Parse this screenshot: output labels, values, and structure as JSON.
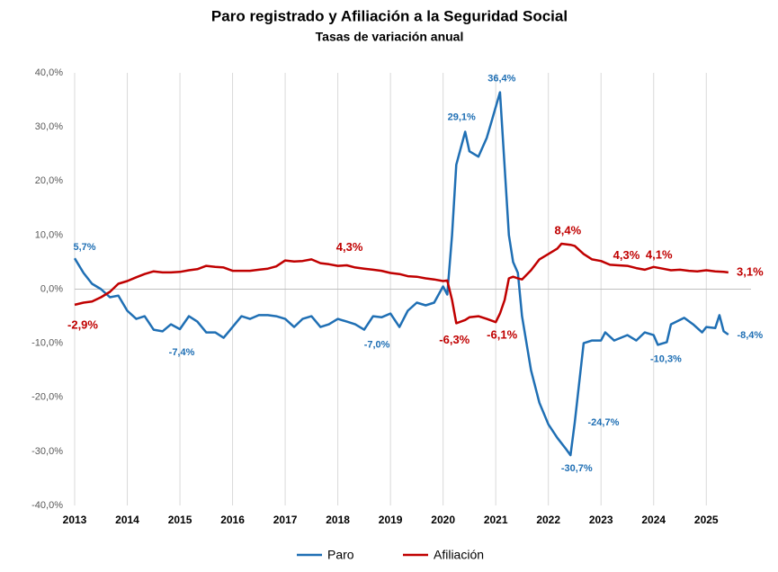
{
  "chart_data": {
    "type": "line",
    "title": "Paro registrado y Afiliación a la Seguridad Social",
    "subtitle": "Tasas de variación anual",
    "xlim": [
      2013,
      2025.85
    ],
    "xticks": [
      2013,
      2014,
      2015,
      2016,
      2017,
      2018,
      2019,
      2020,
      2021,
      2022,
      2023,
      2024,
      2025
    ],
    "ylim": [
      -40,
      40
    ],
    "yticks": [
      {
        "value": -40,
        "label": "-40,0%"
      },
      {
        "value": -30,
        "label": "-30,0%"
      },
      {
        "value": -20,
        "label": "-20,0%"
      },
      {
        "value": -10,
        "label": "-10,0%"
      },
      {
        "value": 0,
        "label": "0,0%"
      },
      {
        "value": 10,
        "label": "10,0%"
      },
      {
        "value": 20,
        "label": "20,0%"
      },
      {
        "value": 30,
        "label": "30,0%"
      },
      {
        "value": 40,
        "label": "40,0%"
      }
    ],
    "grid": true,
    "legend": "bottom",
    "series": [
      {
        "name": "Paro",
        "color": "#1f6fb4",
        "x": [
          2013.0,
          2013.17,
          2013.33,
          2013.5,
          2013.67,
          2013.83,
          2014.0,
          2014.17,
          2014.33,
          2014.5,
          2014.67,
          2014.83,
          2015.0,
          2015.17,
          2015.33,
          2015.5,
          2015.67,
          2015.83,
          2016.0,
          2016.17,
          2016.33,
          2016.5,
          2016.67,
          2016.83,
          2017.0,
          2017.17,
          2017.33,
          2017.5,
          2017.67,
          2017.83,
          2018.0,
          2018.17,
          2018.33,
          2018.5,
          2018.67,
          2018.83,
          2019.0,
          2019.17,
          2019.33,
          2019.5,
          2019.67,
          2019.83,
          2020.0,
          2020.08,
          2020.17,
          2020.25,
          2020.42,
          2020.5,
          2020.67,
          2020.83,
          2020.92,
          2021.08,
          2021.25,
          2021.33,
          2021.42,
          2021.5,
          2021.67,
          2021.83,
          2022.0,
          2022.17,
          2022.33,
          2022.42,
          2022.5,
          2022.67,
          2022.83,
          2023.0,
          2023.08,
          2023.25,
          2023.5,
          2023.67,
          2023.83,
          2024.0,
          2024.08,
          2024.25,
          2024.33,
          2024.58,
          2024.75,
          2024.92,
          2025.0,
          2025.17,
          2025.25,
          2025.33,
          2025.42
        ],
        "values": [
          5.7,
          3.0,
          1.0,
          0,
          -1.5,
          -1.2,
          -4,
          -5.5,
          -5,
          -7.5,
          -7.8,
          -6.5,
          -7.4,
          -5,
          -6,
          -8,
          -8,
          -9,
          -7,
          -5,
          -5.5,
          -4.8,
          -4.8,
          -5,
          -5.5,
          -7,
          -5.5,
          -5,
          -7,
          -6.5,
          -5.5,
          -6,
          -6.5,
          -7.5,
          -5,
          -5.2,
          -4.5,
          -7,
          -4,
          -2.5,
          -3,
          -2.5,
          0.5,
          -1,
          10,
          23,
          29.1,
          25.5,
          24.5,
          28,
          31,
          36.4,
          10,
          5,
          3,
          -5,
          -15,
          -21,
          -25,
          -27.5,
          -29.5,
          -30.7,
          -24.7,
          -10,
          -9.5,
          -9.5,
          -8,
          -9.5,
          -8.5,
          -9.5,
          -8,
          -8.5,
          -10.3,
          -9.8,
          -6.5,
          -5.3,
          -6.5,
          -8,
          -7,
          -7.2,
          -4.8,
          -7.8,
          -8.4
        ],
        "value_labels": [
          "5,7%",
          null,
          null,
          null,
          null,
          null,
          null,
          null,
          null,
          null,
          null,
          null,
          "-7,4%",
          null,
          null,
          null,
          null,
          null,
          null,
          null,
          null,
          null,
          null,
          null,
          null,
          null,
          null,
          null,
          null,
          null,
          null,
          null,
          null,
          null,
          null,
          null,
          null,
          "-7,0%",
          null,
          null,
          null,
          null,
          null,
          null,
          null,
          null,
          "29,1%",
          null,
          null,
          null,
          null,
          "36,4%",
          null,
          null,
          null,
          null,
          null,
          null,
          null,
          null,
          null,
          "-30,7%",
          "-24,7%",
          null,
          null,
          null,
          null,
          null,
          null,
          null,
          null,
          null,
          "-10,3%",
          null,
          null,
          null,
          null,
          null,
          null,
          null,
          null,
          null,
          "-8,4%"
        ]
      },
      {
        "name": "Afiliación",
        "color": "#c00000",
        "x": [
          2013.0,
          2013.17,
          2013.33,
          2013.5,
          2013.67,
          2013.83,
          2014.0,
          2014.17,
          2014.33,
          2014.5,
          2014.67,
          2014.83,
          2015.0,
          2015.17,
          2015.33,
          2015.5,
          2015.67,
          2015.83,
          2016.0,
          2016.17,
          2016.33,
          2016.5,
          2016.67,
          2016.83,
          2017.0,
          2017.17,
          2017.33,
          2017.5,
          2017.67,
          2017.83,
          2018.0,
          2018.17,
          2018.33,
          2018.5,
          2018.67,
          2018.83,
          2019.0,
          2019.17,
          2019.33,
          2019.5,
          2019.67,
          2019.83,
          2020.0,
          2020.08,
          2020.17,
          2020.25,
          2020.42,
          2020.5,
          2020.67,
          2020.83,
          2021.0,
          2021.08,
          2021.17,
          2021.25,
          2021.33,
          2021.42,
          2021.5,
          2021.67,
          2021.83,
          2022.0,
          2022.17,
          2022.25,
          2022.42,
          2022.5,
          2022.67,
          2022.83,
          2023.0,
          2023.17,
          2023.33,
          2023.5,
          2023.67,
          2023.83,
          2024.0,
          2024.17,
          2024.33,
          2024.5,
          2024.67,
          2024.83,
          2025.0,
          2025.17,
          2025.33,
          2025.42
        ],
        "values": [
          -2.9,
          -2.5,
          -2.3,
          -1.5,
          -0.5,
          1.0,
          1.5,
          2.2,
          2.8,
          3.3,
          3.1,
          3.1,
          3.2,
          3.5,
          3.7,
          4.3,
          4.1,
          4.0,
          3.4,
          3.4,
          3.4,
          3.6,
          3.8,
          4.2,
          5.3,
          5.1,
          5.2,
          5.5,
          4.8,
          4.6,
          4.3,
          4.4,
          4.0,
          3.8,
          3.6,
          3.4,
          3.0,
          2.8,
          2.4,
          2.3,
          2.0,
          1.8,
          1.5,
          1.6,
          -2,
          -6.3,
          -5.7,
          -5.2,
          -5,
          -5.5,
          -6.1,
          -4.5,
          -2,
          2.0,
          2.3,
          2.0,
          1.8,
          3.5,
          5.5,
          6.5,
          7.5,
          8.4,
          8.2,
          8.0,
          6.5,
          5.5,
          5.2,
          4.5,
          4.4,
          4.3,
          3.9,
          3.6,
          4.1,
          3.8,
          3.5,
          3.6,
          3.4,
          3.3,
          3.5,
          3.3,
          3.2,
          3.1
        ],
        "value_labels": [
          "-2,9%",
          null,
          null,
          null,
          null,
          null,
          null,
          null,
          null,
          null,
          null,
          null,
          null,
          null,
          null,
          null,
          null,
          null,
          null,
          null,
          null,
          null,
          null,
          null,
          null,
          null,
          null,
          null,
          null,
          null,
          "4,3%",
          null,
          null,
          null,
          null,
          null,
          null,
          null,
          null,
          null,
          null,
          null,
          null,
          null,
          null,
          "-6,3%",
          null,
          null,
          null,
          null,
          "-6,1%",
          null,
          null,
          null,
          null,
          null,
          null,
          null,
          null,
          null,
          null,
          "8,4%",
          null,
          null,
          null,
          null,
          null,
          null,
          null,
          "4,3%",
          null,
          null,
          "4,1%",
          null,
          null,
          null,
          null,
          null,
          null,
          null,
          null,
          "3,1%"
        ]
      }
    ]
  }
}
